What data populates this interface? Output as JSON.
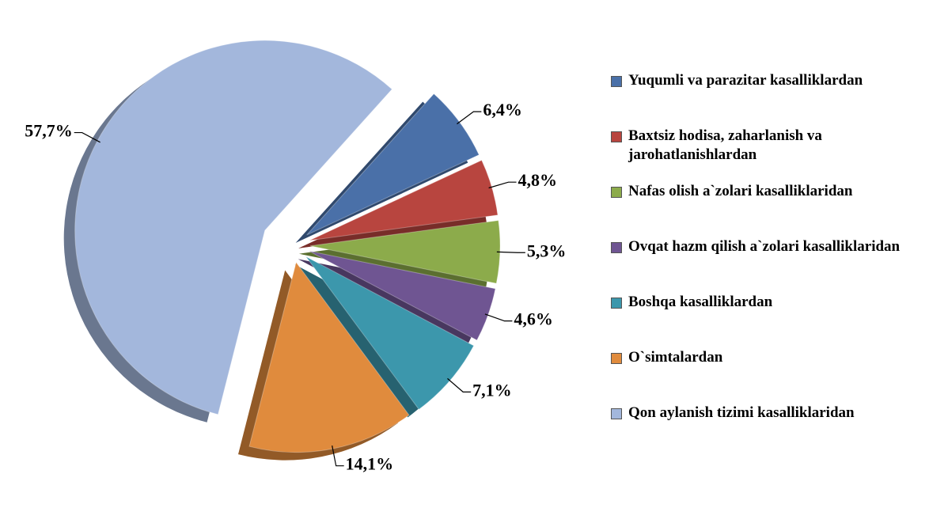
{
  "chart_data": {
    "type": "pie",
    "categories": [
      "Yuqumli va parazitar kasalliklardan",
      "Baxtsiz hodisa, zaharlanish va jarohatlanishlardan",
      "Nafas olish a`zolari kasalliklaridan",
      "Ovqat hazm qilish a`zolari kasalliklaridan",
      "Boshqa kasalliklardan",
      "O`simtalardan",
      "Qon aylanish tizimi kasalliklaridan"
    ],
    "values": [
      6.4,
      4.8,
      5.3,
      4.6,
      7.1,
      14.1,
      57.7
    ],
    "value_labels": [
      "6,4%",
      "4,8%",
      "5,3%",
      "4,6%",
      "7,1%",
      "14,1%",
      "57,7%"
    ],
    "colors": [
      "#4a70a8",
      "#b8453f",
      "#8cab4b",
      "#6f5592",
      "#3c97ac",
      "#e08b3d",
      "#a3b7dc"
    ],
    "legend": "right"
  }
}
